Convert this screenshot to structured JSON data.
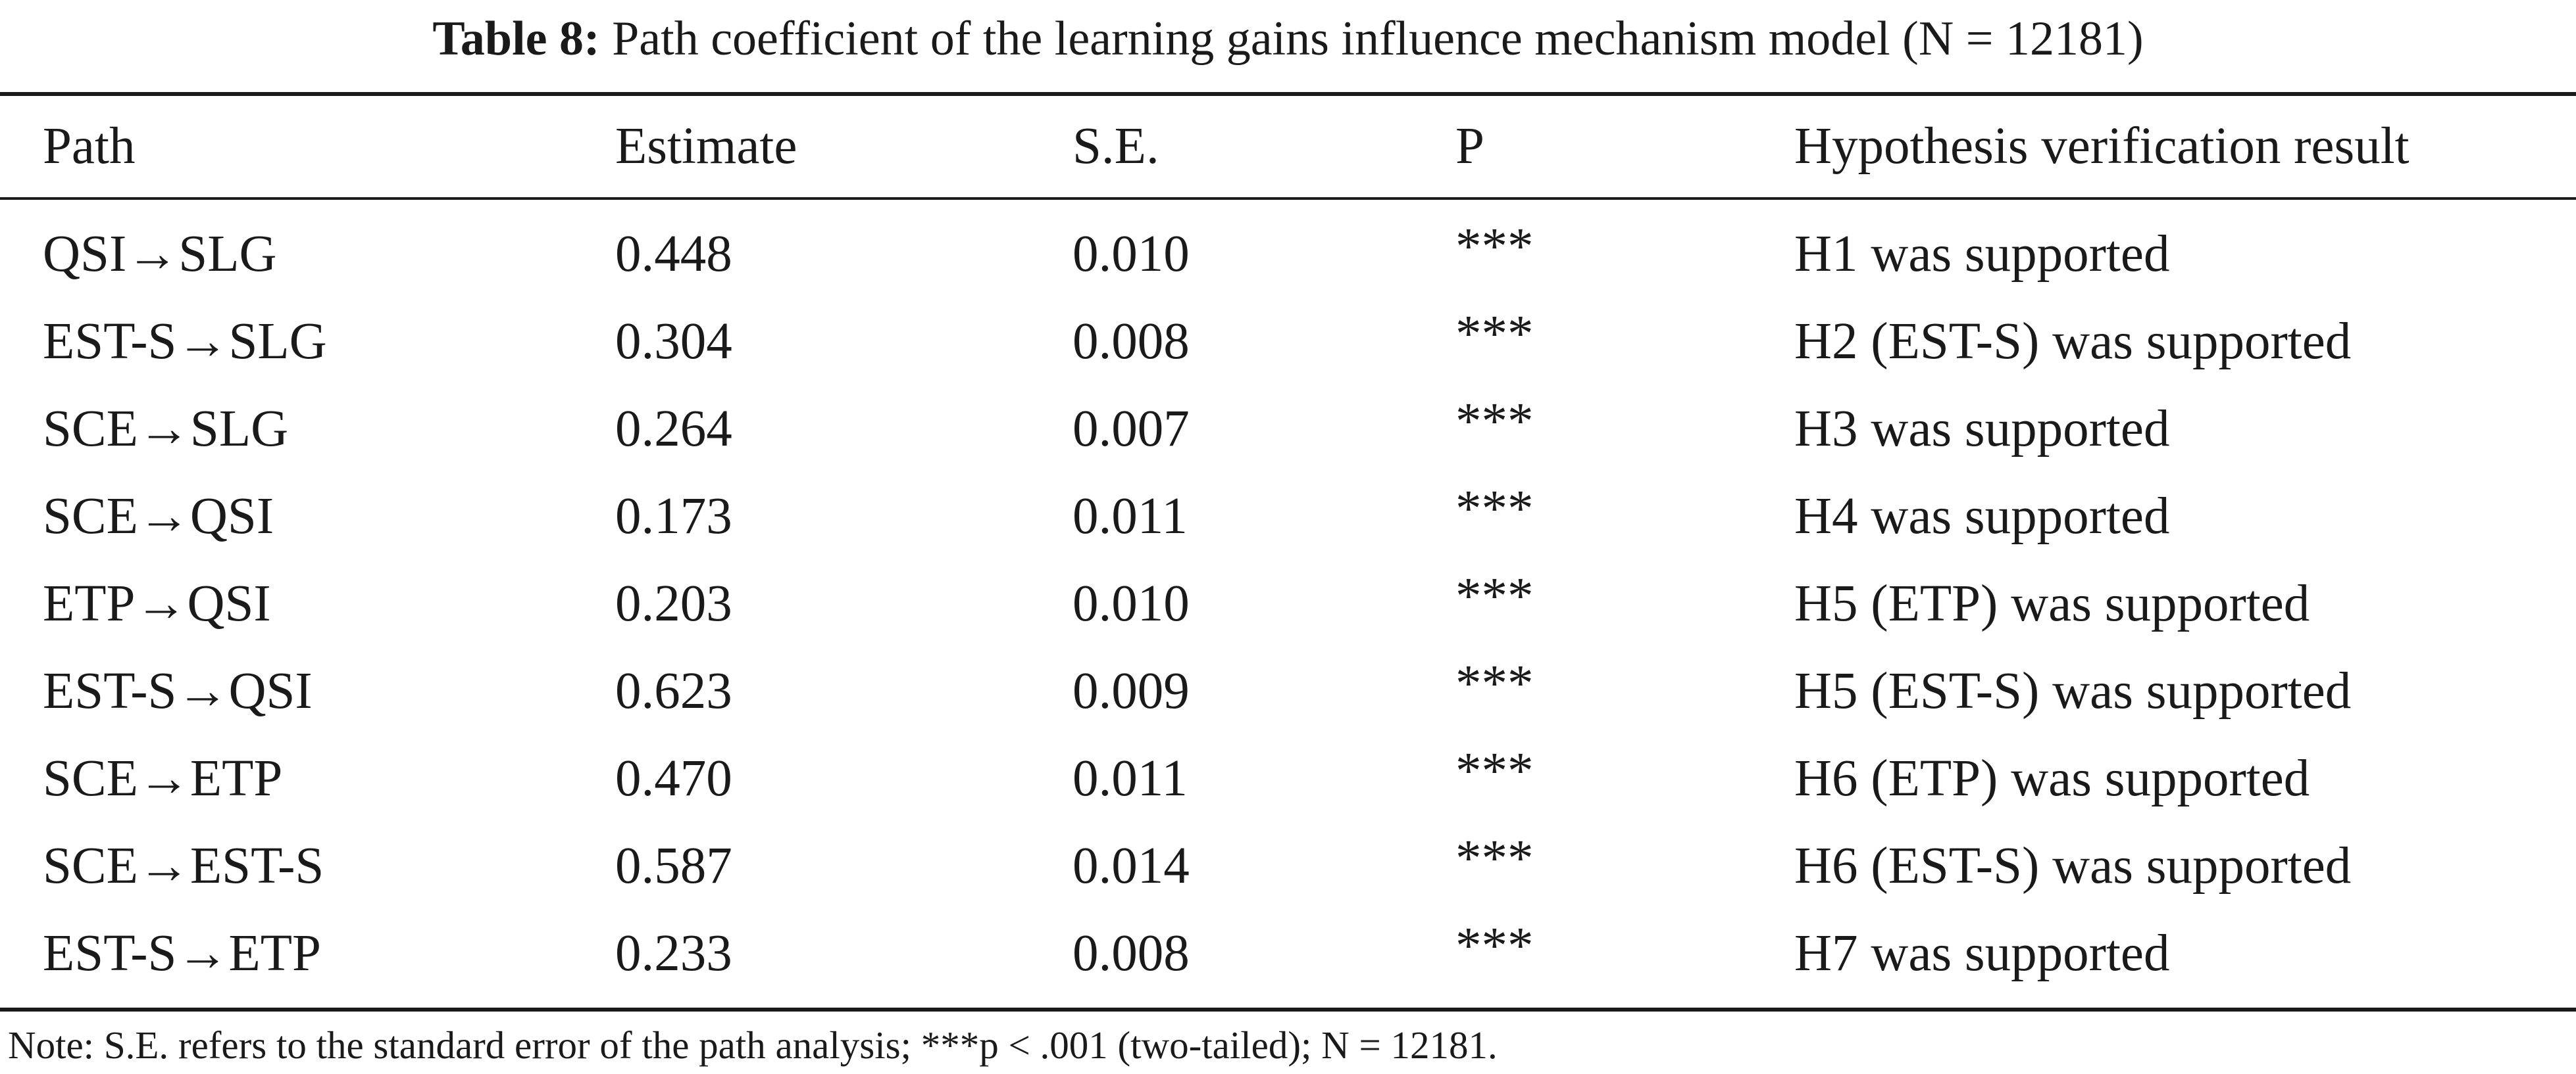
{
  "caption": {
    "label": "Table 8:",
    "text": "Path coefficient of the learning gains influence mechanism model (N = 12181)"
  },
  "table": {
    "headers": [
      "Path",
      "Estimate",
      "S.E.",
      "P",
      "Hypothesis verification result"
    ],
    "rows": [
      [
        "QSI→SLG",
        "0.448",
        "0.010",
        "***",
        "H1 was supported"
      ],
      [
        "EST-S→SLG",
        "0.304",
        "0.008",
        "***",
        "H2 (EST-S) was supported"
      ],
      [
        "SCE→SLG",
        "0.264",
        "0.007",
        "***",
        "H3 was supported"
      ],
      [
        "SCE→QSI",
        "0.173",
        "0.011",
        "***",
        "H4 was supported"
      ],
      [
        "ETP→QSI",
        "0.203",
        "0.010",
        "***",
        "H5 (ETP) was supported"
      ],
      [
        "EST-S→QSI",
        "0.623",
        "0.009",
        "***",
        "H5 (EST-S) was supported"
      ],
      [
        "SCE→ETP",
        "0.470",
        "0.011",
        "***",
        "H6 (ETP) was supported"
      ],
      [
        "SCE→EST-S",
        "0.587",
        "0.014",
        "***",
        "H6 (EST-S) was supported"
      ],
      [
        "EST-S→ETP",
        "0.233",
        "0.008",
        "***",
        "H7 was supported"
      ]
    ]
  },
  "note": "Note: S.E. refers to the standard error of the path analysis; ***p < .001 (two-tailed); N = 12181."
}
